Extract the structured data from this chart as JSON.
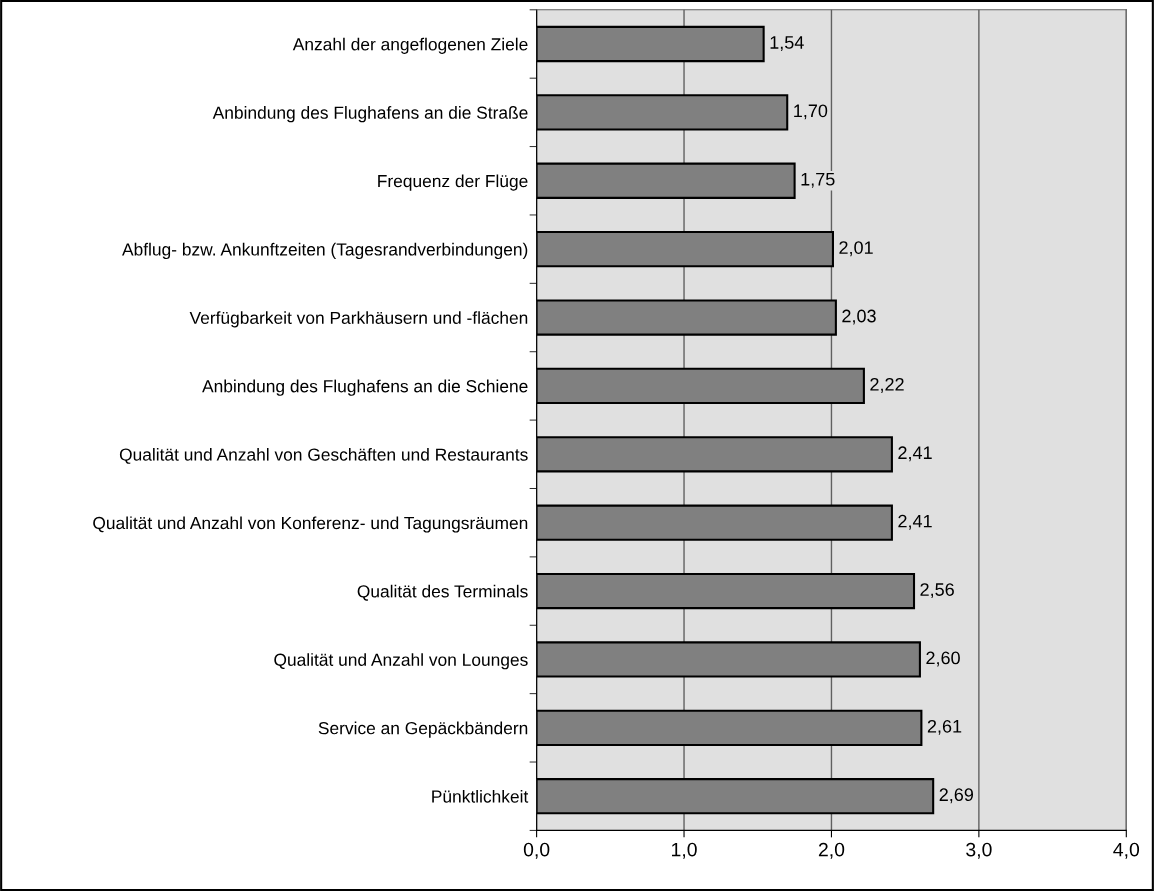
{
  "chart_data": {
    "type": "bar",
    "orientation": "horizontal",
    "categories": [
      "Anzahl der angeflogenen Ziele",
      "Anbindung des Flughafens an die Straße",
      "Frequenz der Flüge",
      "Abflug- bzw. Ankunftzeiten (Tagesrandverbindungen)",
      "Verfügbarkeit von Parkhäusern und -flächen",
      "Anbindung des Flughafens an die Schiene",
      "Qualität und Anzahl von Geschäften und Restaurants",
      "Qualität und Anzahl von Konferenz- und Tagungsräumen",
      "Qualität des Terminals",
      "Qualität und Anzahl von Lounges",
      "Service an Gepäckbändern",
      "Pünktlichkeit"
    ],
    "values": [
      1.54,
      1.7,
      1.75,
      2.01,
      2.03,
      2.22,
      2.41,
      2.41,
      2.56,
      2.6,
      2.61,
      2.69
    ],
    "value_labels": [
      "1,54",
      "1,70",
      "1,75",
      "2,01",
      "2,03",
      "2,22",
      "2,41",
      "2,41",
      "2,56",
      "2,60",
      "2,61",
      "2,69"
    ],
    "color": "#808080",
    "xlim": [
      0,
      4
    ],
    "xticks": [
      {
        "value": 0,
        "label": "0,0"
      },
      {
        "value": 1,
        "label": "1,0"
      },
      {
        "value": 2,
        "label": "2,0"
      },
      {
        "value": 3,
        "label": "3,0"
      },
      {
        "value": 4,
        "label": "4,0"
      }
    ],
    "grid": "x"
  }
}
